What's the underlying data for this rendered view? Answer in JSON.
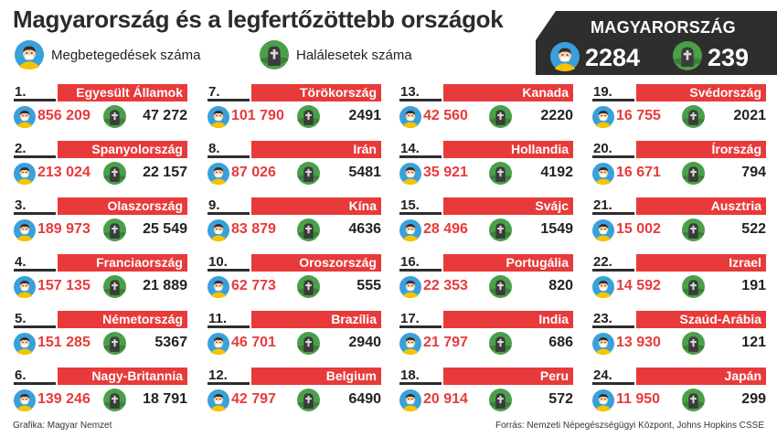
{
  "title": "Magyarország és a legfertőzöttebb országok",
  "legend": {
    "cases_label": "Megbetegedések száma",
    "deaths_label": "Halálesetek száma"
  },
  "hungary": {
    "label": "MAGYARORSZÁG",
    "cases": "2284",
    "deaths": "239"
  },
  "countries": [
    {
      "rank": "1.",
      "name": "Egyesült Államok",
      "cases": "856 209",
      "deaths": "47 272"
    },
    {
      "rank": "2.",
      "name": "Spanyolország",
      "cases": "213 024",
      "deaths": "22 157"
    },
    {
      "rank": "3.",
      "name": "Olaszország",
      "cases": "189 973",
      "deaths": "25 549"
    },
    {
      "rank": "4.",
      "name": "Franciaország",
      "cases": "157 135",
      "deaths": "21 889"
    },
    {
      "rank": "5.",
      "name": "Németország",
      "cases": "151 285",
      "deaths": "5367"
    },
    {
      "rank": "6.",
      "name": "Nagy-Britannia",
      "cases": "139 246",
      "deaths": "18 791"
    },
    {
      "rank": "7.",
      "name": "Törökország",
      "cases": "101 790",
      "deaths": "2491"
    },
    {
      "rank": "8.",
      "name": "Irán",
      "cases": "87 026",
      "deaths": "5481"
    },
    {
      "rank": "9.",
      "name": "Kína",
      "cases": "83 879",
      "deaths": "4636"
    },
    {
      "rank": "10.",
      "name": "Oroszország",
      "cases": "62 773",
      "deaths": "555"
    },
    {
      "rank": "11.",
      "name": "Brazília",
      "cases": "46 701",
      "deaths": "2940"
    },
    {
      "rank": "12.",
      "name": "Belgium",
      "cases": "42 797",
      "deaths": "6490"
    },
    {
      "rank": "13.",
      "name": "Kanada",
      "cases": "42 560",
      "deaths": "2220"
    },
    {
      "rank": "14.",
      "name": "Hollandia",
      "cases": "35 921",
      "deaths": "4192"
    },
    {
      "rank": "15.",
      "name": "Svájc",
      "cases": "28 496",
      "deaths": "1549"
    },
    {
      "rank": "16.",
      "name": "Portugália",
      "cases": "22 353",
      "deaths": "820"
    },
    {
      "rank": "17.",
      "name": "India",
      "cases": "21 797",
      "deaths": "686"
    },
    {
      "rank": "18.",
      "name": "Peru",
      "cases": "20 914",
      "deaths": "572"
    },
    {
      "rank": "19.",
      "name": "Svédország",
      "cases": "16 755",
      "deaths": "2021"
    },
    {
      "rank": "20.",
      "name": "Írország",
      "cases": "16 671",
      "deaths": "794"
    },
    {
      "rank": "21.",
      "name": "Ausztria",
      "cases": "15 002",
      "deaths": "522"
    },
    {
      "rank": "22.",
      "name": "Izrael",
      "cases": "14 592",
      "deaths": "191"
    },
    {
      "rank": "23.",
      "name": "Szaúd-Arábia",
      "cases": "13 930",
      "deaths": "121"
    },
    {
      "rank": "24.",
      "name": "Japán",
      "cases": "11 950",
      "deaths": "299"
    }
  ],
  "footer": {
    "credit": "Grafika: Magyar Nemzet",
    "source": "Forrás: Nemzeti Népegészségügyi Központ, Johns Hopkins CSSE"
  },
  "colors": {
    "accent_red": "#e83a3a",
    "dark": "#2e2e2e",
    "patient_icon_bg": "#3aa0dc",
    "death_icon_bg": "#4aa04a"
  },
  "icons": {
    "cases": "sick-person-icon",
    "deaths": "grave-icon"
  }
}
